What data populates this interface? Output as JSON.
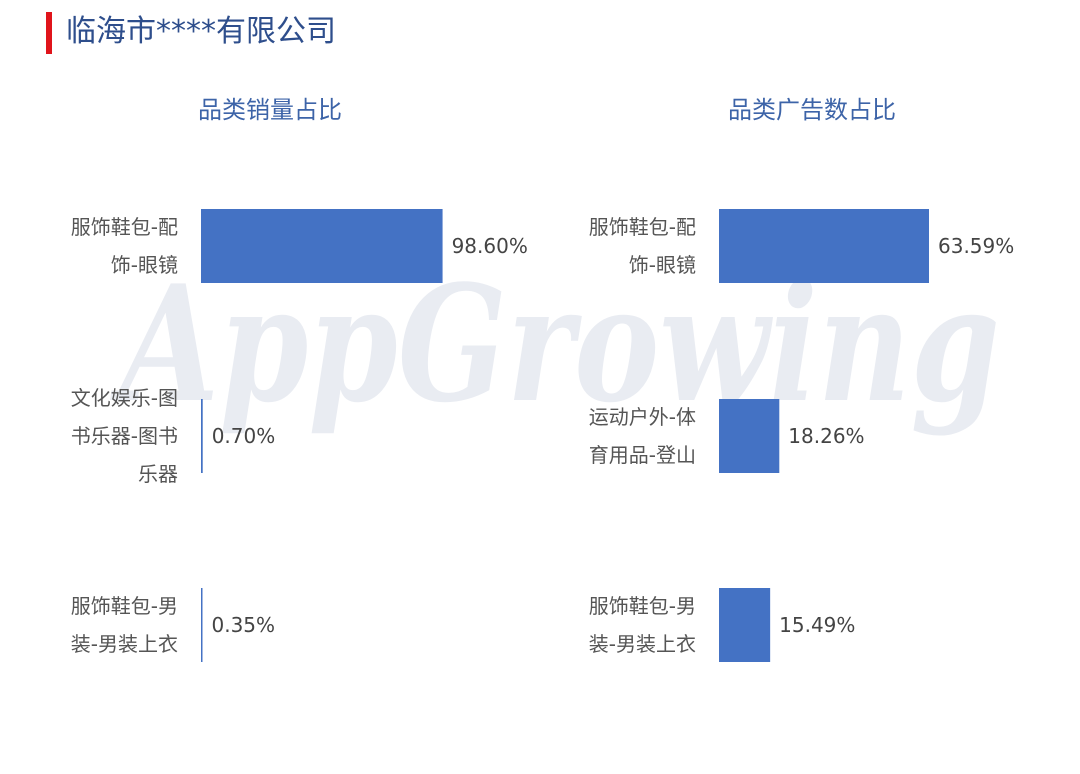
{
  "header": {
    "company_name": "临海市****有限公司",
    "accent_color": "#e0141b"
  },
  "watermark": {
    "text": "AppGrowing"
  },
  "chart_data": [
    {
      "type": "bar",
      "orientation": "horizontal",
      "title": "品类销量占比",
      "categories": [
        [
          "服饰鞋包-配",
          "饰-眼镜"
        ],
        [
          "文化娱乐-图",
          "书乐器-图书",
          "乐器"
        ],
        [
          "服饰鞋包-男",
          "装-男装上衣"
        ]
      ],
      "values": [
        98.6,
        0.7,
        0.35
      ],
      "value_labels": [
        "98.60%",
        "0.70%",
        "0.35%"
      ],
      "xlim": [
        0,
        100
      ],
      "grid": false,
      "bar_color": "#4472c4"
    },
    {
      "type": "bar",
      "orientation": "horizontal",
      "title": "品类广告数占比",
      "categories": [
        [
          "服饰鞋包-配",
          "饰-眼镜"
        ],
        [
          "运动户外-体",
          "育用品-登山"
        ],
        [
          "服饰鞋包-男",
          "装-男装上衣"
        ]
      ],
      "values": [
        63.59,
        18.26,
        15.49
      ],
      "value_labels": [
        "63.59%",
        "18.26%",
        "15.49%"
      ],
      "xlim": [
        0,
        63.59
      ],
      "grid": false,
      "bar_color": "#4472c4"
    }
  ]
}
